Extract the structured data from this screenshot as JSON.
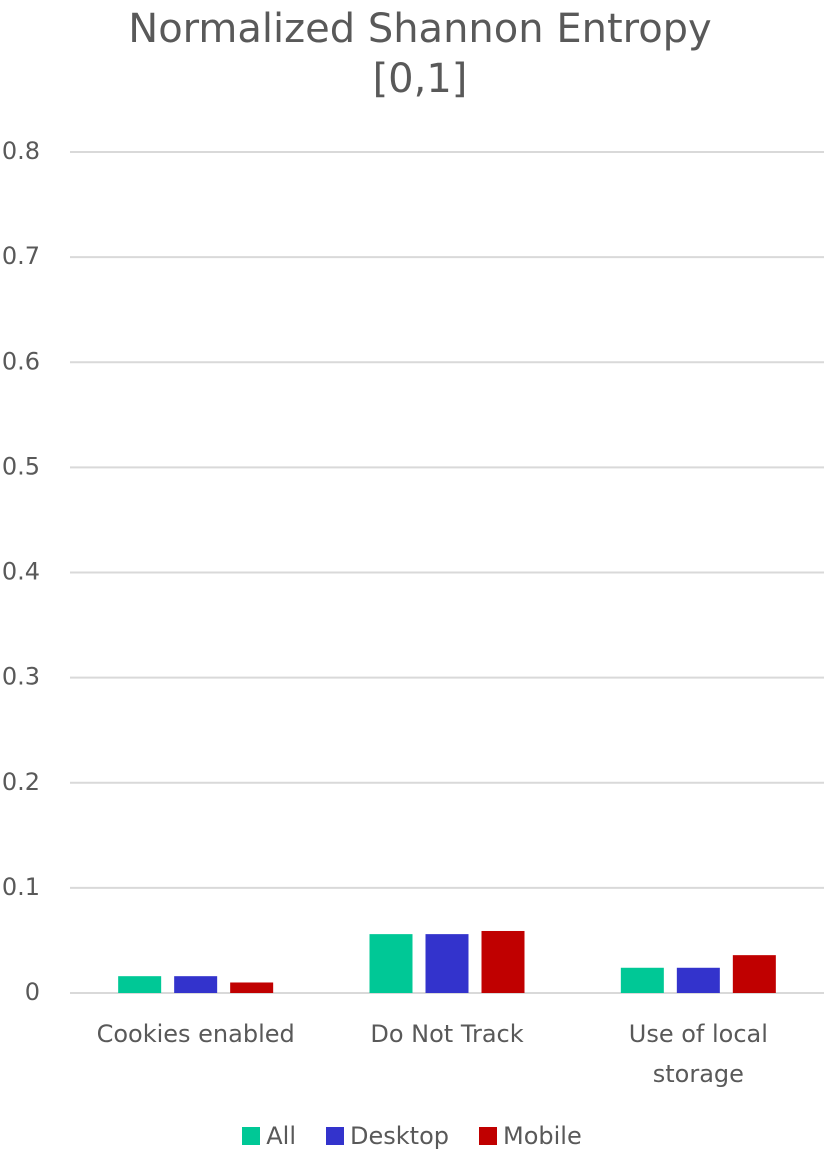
{
  "chart_data": {
    "type": "bar",
    "title": "Normalized Shannon Entropy [0,1]",
    "categories": [
      "Cookies enabled",
      "Do Not Track",
      "Use of local storage"
    ],
    "series": [
      {
        "name": "All",
        "color": "#00c896",
        "values": [
          0.016,
          0.056,
          0.024
        ]
      },
      {
        "name": "Desktop",
        "color": "#3333cc",
        "values": [
          0.016,
          0.056,
          0.024
        ]
      },
      {
        "name": "Mobile",
        "color": "#c00000",
        "values": [
          0.01,
          0.059,
          0.036
        ]
      }
    ],
    "ylim": [
      0,
      0.8
    ],
    "yticks": [
      0,
      0.1,
      0.2,
      0.3,
      0.4,
      0.5,
      0.6,
      0.7,
      0.8
    ],
    "grid": true,
    "legend": "bottom"
  }
}
